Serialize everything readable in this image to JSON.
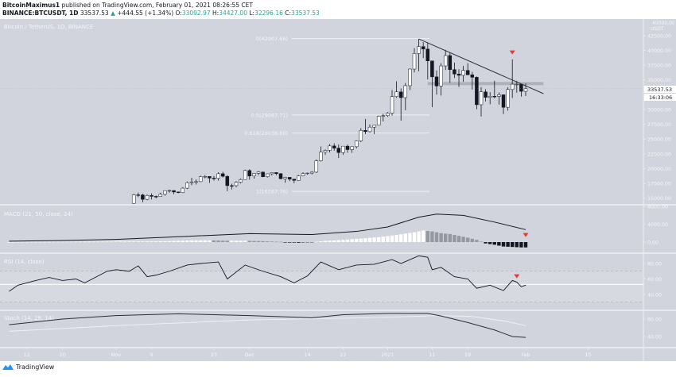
{
  "header": {
    "author": "BitcoinMaximus1",
    "published": "published on TradingView.com, February 01, 2021 08:26:55 CET",
    "symbol": "BINANCE:BTCUSDT, 1D",
    "last": "33537.53",
    "change": "+444.55 (+1.34%)",
    "o_label": "O:",
    "o": "33092.97",
    "h_label": "H:",
    "h": "34427.00",
    "l_label": "L:",
    "l": "32296.16",
    "c_label": "C:",
    "c": "33537.53"
  },
  "main_title": "Bitcoin / TetherUS, 1D, BINANCE",
  "price_axis": {
    "unit": "USDT",
    "top_partial": "45000.00",
    "labels": [
      "42500.00",
      "40000.00",
      "37500.00",
      "35000.00",
      "30000.00",
      "27500.00",
      "25000.00",
      "22500.00",
      "20000.00",
      "17500.00",
      "15000.00"
    ],
    "current_price": "33537.53",
    "countdown": "16:33:06"
  },
  "colors": {
    "background": "#d1d4dc",
    "candle_up": "#ffffff",
    "candle_down": "#131722",
    "marker": "#e53935",
    "grid_line": "#eef0f4"
  },
  "fib_levels": [
    {
      "label": "0(42007.66)",
      "price": 42007.66
    },
    {
      "label": "0.5(29087.71)",
      "price": 29087.71
    },
    {
      "label": "0.618(26038.60)",
      "price": 26038.6
    },
    {
      "label": "1(16167.76)",
      "price": 16167.76
    }
  ],
  "trendline": [
    [
      "2021-01-08",
      41950
    ],
    [
      "2021-02-05",
      32700
    ]
  ],
  "resistance_band": {
    "price": 34400,
    "from": "2021-01-10",
    "to": "2021-02-05"
  },
  "markers": {
    "main": [
      "2021-01-29",
      39600
    ],
    "macd": [
      "2021-02-01",
      1500
    ],
    "rsi": [
      "2021-01-30",
      63
    ]
  },
  "candles": [
    [
      "2020-11-05",
      14150,
      15750,
      14100,
      15590
    ],
    [
      "2020-11-06",
      15590,
      15960,
      15200,
      15580
    ],
    [
      "2020-11-07",
      15580,
      15770,
      14350,
      14830
    ],
    [
      "2020-11-08",
      14830,
      15660,
      14700,
      15480
    ],
    [
      "2020-11-09",
      15480,
      15840,
      14800,
      15330
    ],
    [
      "2020-11-10",
      15330,
      15460,
      14990,
      15300
    ],
    [
      "2020-11-11",
      15300,
      15950,
      15270,
      15700
    ],
    [
      "2020-11-12",
      15700,
      16340,
      15440,
      16290
    ],
    [
      "2020-11-13",
      16290,
      16480,
      15950,
      16320
    ],
    [
      "2020-11-14",
      16320,
      16330,
      15710,
      16070
    ],
    [
      "2020-11-15",
      16070,
      16140,
      15860,
      15960
    ],
    [
      "2020-11-16",
      15960,
      16880,
      15870,
      16720
    ],
    [
      "2020-11-17",
      16720,
      17860,
      16560,
      17650
    ],
    [
      "2020-11-18",
      17650,
      18480,
      17210,
      17780
    ],
    [
      "2020-11-19",
      17780,
      18180,
      17340,
      17820
    ],
    [
      "2020-11-20",
      17820,
      18810,
      17760,
      18660
    ],
    [
      "2020-11-21",
      18660,
      18950,
      18380,
      18700
    ],
    [
      "2020-11-22",
      18700,
      18730,
      17620,
      18420
    ],
    [
      "2020-11-23",
      18420,
      18770,
      18000,
      18370
    ],
    [
      "2020-11-24",
      18370,
      19420,
      18000,
      19160
    ],
    [
      "2020-11-25",
      19160,
      19480,
      18530,
      18720
    ],
    [
      "2020-11-26",
      18720,
      18900,
      16200,
      17150
    ],
    [
      "2020-11-27",
      17150,
      17460,
      16500,
      17140
    ],
    [
      "2020-11-28",
      17140,
      17880,
      16880,
      17720
    ],
    [
      "2020-11-29",
      17720,
      18350,
      17520,
      18180
    ],
    [
      "2020-11-30",
      18180,
      19860,
      18180,
      19700
    ],
    [
      "2020-12-01",
      19700,
      19920,
      18150,
      18770
    ],
    [
      "2020-12-02",
      18770,
      19300,
      18330,
      19220
    ],
    [
      "2020-12-03",
      19220,
      19600,
      18920,
      19440
    ],
    [
      "2020-12-04",
      19440,
      19520,
      18570,
      18650
    ],
    [
      "2020-12-05",
      18650,
      19180,
      18500,
      19150
    ],
    [
      "2020-12-06",
      19150,
      19420,
      18860,
      19360
    ],
    [
      "2020-12-07",
      19360,
      19390,
      18900,
      19170
    ],
    [
      "2020-12-08",
      19170,
      19280,
      18200,
      18320
    ],
    [
      "2020-12-09",
      18320,
      18640,
      17650,
      18550
    ],
    [
      "2020-12-10",
      18550,
      18560,
      17900,
      18250
    ],
    [
      "2020-12-11",
      18250,
      18280,
      17570,
      18030
    ],
    [
      "2020-12-12",
      18030,
      18950,
      18020,
      18800
    ],
    [
      "2020-12-13",
      18800,
      19420,
      18720,
      19170
    ],
    [
      "2020-12-14",
      19170,
      19350,
      19000,
      19270
    ],
    [
      "2020-12-15",
      19270,
      19570,
      19050,
      19430
    ],
    [
      "2020-12-16",
      19430,
      21560,
      19290,
      21350
    ],
    [
      "2020-12-17",
      21350,
      23770,
      21230,
      22800
    ],
    [
      "2020-12-18",
      22800,
      23280,
      22350,
      23110
    ],
    [
      "2020-12-19",
      23110,
      24170,
      22750,
      23860
    ],
    [
      "2020-12-20",
      23860,
      24300,
      23060,
      23480
    ],
    [
      "2020-12-21",
      23480,
      24100,
      21820,
      22740
    ],
    [
      "2020-12-22",
      22740,
      23840,
      22350,
      23820
    ],
    [
      "2020-12-23",
      23820,
      24100,
      22700,
      23240
    ],
    [
      "2020-12-24",
      23240,
      23780,
      22700,
      23730
    ],
    [
      "2020-12-25",
      23730,
      24790,
      23430,
      24710
    ],
    [
      "2020-12-26",
      24710,
      26870,
      24500,
      26490
    ],
    [
      "2020-12-27",
      26490,
      28420,
      25850,
      26270
    ],
    [
      "2020-12-28",
      26270,
      27500,
      26100,
      27040
    ],
    [
      "2020-12-29",
      27040,
      27390,
      25880,
      27360
    ],
    [
      "2020-12-30",
      27360,
      29000,
      27320,
      28890
    ],
    [
      "2020-12-31",
      28890,
      29300,
      28000,
      28990
    ],
    [
      "2021-01-01",
      28990,
      29600,
      28800,
      29410
    ],
    [
      "2021-01-02",
      29410,
      33300,
      29000,
      32200
    ],
    [
      "2021-01-03",
      32200,
      34780,
      32000,
      33000
    ],
    [
      "2021-01-04",
      33000,
      33600,
      28130,
      32030
    ],
    [
      "2021-01-05",
      32030,
      34500,
      29900,
      34050
    ],
    [
      "2021-01-06",
      34050,
      36940,
      33300,
      36860
    ],
    [
      "2021-01-07",
      36860,
      40400,
      36300,
      39490
    ],
    [
      "2021-01-08",
      39490,
      41950,
      36500,
      40670
    ],
    [
      "2021-01-09",
      40670,
      41400,
      38720,
      40240
    ],
    [
      "2021-01-10",
      40240,
      41380,
      35110,
      38240
    ],
    [
      "2021-01-11",
      38240,
      38260,
      30420,
      35540
    ],
    [
      "2021-01-12",
      35540,
      36630,
      32530,
      34000
    ],
    [
      "2021-01-13",
      34000,
      37850,
      32380,
      37390
    ],
    [
      "2021-01-14",
      37390,
      40100,
      36700,
      39150
    ],
    [
      "2021-01-15",
      39150,
      39700,
      34540,
      36770
    ],
    [
      "2021-01-16",
      36770,
      37950,
      35360,
      36020
    ],
    [
      "2021-01-17",
      36020,
      36850,
      33850,
      35800
    ],
    [
      "2021-01-18",
      35800,
      37400,
      34720,
      36630
    ],
    [
      "2021-01-19",
      36630,
      37850,
      35900,
      35890
    ],
    [
      "2021-01-20",
      35890,
      36400,
      33400,
      35470
    ],
    [
      "2021-01-21",
      35470,
      35600,
      30070,
      30830
    ],
    [
      "2021-01-22",
      30830,
      33830,
      28850,
      33000
    ],
    [
      "2021-01-23",
      33000,
      33460,
      31390,
      32080
    ],
    [
      "2021-01-24",
      32080,
      32940,
      30900,
      32260
    ],
    [
      "2021-01-25",
      32260,
      34880,
      31910,
      32250
    ],
    [
      "2021-01-26",
      32250,
      32920,
      30840,
      32510
    ],
    [
      "2021-01-27",
      32510,
      32560,
      29240,
      30400
    ],
    [
      "2021-01-28",
      30400,
      33790,
      29840,
      33400
    ],
    [
      "2021-01-29",
      33400,
      38500,
      31970,
      34300
    ],
    [
      "2021-01-30",
      34300,
      34880,
      32860,
      34300
    ],
    [
      "2021-01-31",
      34300,
      34300,
      32200,
      33092
    ],
    [
      "2021-02-01",
      33092,
      34427,
      32296,
      33537
    ]
  ],
  "macd": {
    "title": "MACD (21, 50, close, 24)",
    "axis_labels": [
      "8000.00",
      "4000.00",
      "0.00"
    ],
    "line": [
      [
        "2020-10-08",
        200
      ],
      [
        "2020-10-20",
        350
      ],
      [
        "2020-11-01",
        600
      ],
      [
        "2020-11-15",
        1200
      ],
      [
        "2020-12-01",
        1900
      ],
      [
        "2020-12-15",
        1700
      ],
      [
        "2020-12-25",
        2400
      ],
      [
        "2021-01-01",
        3400
      ],
      [
        "2021-01-08",
        5600
      ],
      [
        "2021-01-12",
        6300
      ],
      [
        "2021-01-18",
        6000
      ],
      [
        "2021-01-25",
        4500
      ],
      [
        "2021-02-01",
        2800
      ]
    ],
    "histogram": [
      [
        "2020-10-08",
        0
      ],
      [
        "2020-11-10",
        150
      ],
      [
        "2020-11-14",
        250
      ],
      [
        "2020-11-18",
        350
      ],
      [
        "2020-11-22",
        400
      ],
      [
        "2020-11-26",
        300
      ],
      [
        "2020-11-30",
        300
      ],
      [
        "2020-12-04",
        200
      ],
      [
        "2020-12-08",
        50
      ],
      [
        "2020-12-12",
        -150
      ],
      [
        "2020-12-14",
        -100
      ],
      [
        "2020-12-18",
        250
      ],
      [
        "2020-12-22",
        500
      ],
      [
        "2020-12-26",
        800
      ],
      [
        "2020-12-30",
        1100
      ],
      [
        "2021-01-03",
        1600
      ],
      [
        "2021-01-07",
        2200
      ],
      [
        "2021-01-09",
        2600
      ],
      [
        "2021-01-11",
        2400
      ],
      [
        "2021-01-13",
        2000
      ],
      [
        "2021-01-15",
        1800
      ],
      [
        "2021-01-17",
        1400
      ],
      [
        "2021-01-19",
        1000
      ],
      [
        "2021-01-21",
        500
      ],
      [
        "2021-01-23",
        -300
      ],
      [
        "2021-01-25",
        -600
      ],
      [
        "2021-01-27",
        -1000
      ],
      [
        "2021-01-29",
        -1100
      ],
      [
        "2021-01-31",
        -1200
      ],
      [
        "2021-02-01",
        -1200
      ]
    ]
  },
  "rsi": {
    "title": "RSI (14, close)",
    "axis_labels": [
      "80.00",
      "60.00",
      "40.00"
    ],
    "bands": [
      70,
      30
    ],
    "user_level": 53,
    "line": [
      [
        "2020-10-08",
        44
      ],
      [
        "2020-10-10",
        52
      ],
      [
        "2020-10-14",
        58
      ],
      [
        "2020-10-17",
        62
      ],
      [
        "2020-10-20",
        58
      ],
      [
        "2020-10-23",
        60
      ],
      [
        "2020-10-25",
        55
      ],
      [
        "2020-10-28",
        64
      ],
      [
        "2020-10-30",
        70
      ],
      [
        "2020-11-01",
        72
      ],
      [
        "2020-11-04",
        70
      ],
      [
        "2020-11-06",
        77
      ],
      [
        "2020-11-08",
        63
      ],
      [
        "2020-11-10",
        65
      ],
      [
        "2020-11-13",
        70
      ],
      [
        "2020-11-17",
        78
      ],
      [
        "2020-11-20",
        80
      ],
      [
        "2020-11-24",
        82
      ],
      [
        "2020-11-26",
        60
      ],
      [
        "2020-11-30",
        78
      ],
      [
        "2020-12-04",
        70
      ],
      [
        "2020-12-08",
        63
      ],
      [
        "2020-12-11",
        55
      ],
      [
        "2020-12-14",
        64
      ],
      [
        "2020-12-17",
        82
      ],
      [
        "2020-12-21",
        72
      ],
      [
        "2020-12-25",
        78
      ],
      [
        "2020-12-29",
        79
      ],
      [
        "2021-01-02",
        85
      ],
      [
        "2021-01-04",
        80
      ],
      [
        "2021-01-08",
        90
      ],
      [
        "2021-01-10",
        88
      ],
      [
        "2021-01-11",
        72
      ],
      [
        "2021-01-13",
        75
      ],
      [
        "2021-01-16",
        63
      ],
      [
        "2021-01-19",
        60
      ],
      [
        "2021-01-21",
        48
      ],
      [
        "2021-01-24",
        52
      ],
      [
        "2021-01-27",
        45
      ],
      [
        "2021-01-29",
        58
      ],
      [
        "2021-01-30",
        56
      ],
      [
        "2021-01-31",
        50
      ],
      [
        "2021-02-01",
        52
      ]
    ]
  },
  "stoch": {
    "title": "Stoch (14, 28, 14)",
    "axis_labels": [
      "80.00",
      "40.00"
    ],
    "k": [
      [
        "2020-10-08",
        67
      ],
      [
        "2020-10-20",
        80
      ],
      [
        "2020-11-01",
        88
      ],
      [
        "2020-11-15",
        92
      ],
      [
        "2020-12-01",
        88
      ],
      [
        "2020-12-15",
        83
      ],
      [
        "2020-12-22",
        90
      ],
      [
        "2021-01-01",
        93
      ],
      [
        "2021-01-10",
        93
      ],
      [
        "2021-01-13",
        87
      ],
      [
        "2021-01-19",
        72
      ],
      [
        "2021-01-25",
        55
      ],
      [
        "2021-01-29",
        40
      ],
      [
        "2021-02-01",
        38
      ]
    ],
    "d": [
      [
        "2020-10-08",
        52
      ],
      [
        "2020-11-01",
        65
      ],
      [
        "2020-12-01",
        78
      ],
      [
        "2021-01-01",
        84
      ],
      [
        "2021-01-12",
        88
      ],
      [
        "2021-01-20",
        86
      ],
      [
        "2021-01-27",
        76
      ],
      [
        "2021-02-01",
        65
      ]
    ]
  },
  "time_axis": [
    [
      "2020-10-12",
      "12"
    ],
    [
      "2020-10-20",
      "20"
    ],
    [
      "2020-11-01",
      "Nov"
    ],
    [
      "2020-11-09",
      "9"
    ],
    [
      "2020-11-23",
      "23"
    ],
    [
      "2020-12-01",
      "Dec"
    ],
    [
      "2020-12-14",
      "14"
    ],
    [
      "2020-12-22",
      "22"
    ],
    [
      "2021-01-01",
      "2021"
    ],
    [
      "2021-01-11",
      "11"
    ],
    [
      "2021-01-19",
      "19"
    ],
    [
      "2021-02-01",
      "Feb"
    ],
    [
      "2021-02-15",
      "15"
    ]
  ],
  "footer": {
    "brand": "TradingView"
  }
}
